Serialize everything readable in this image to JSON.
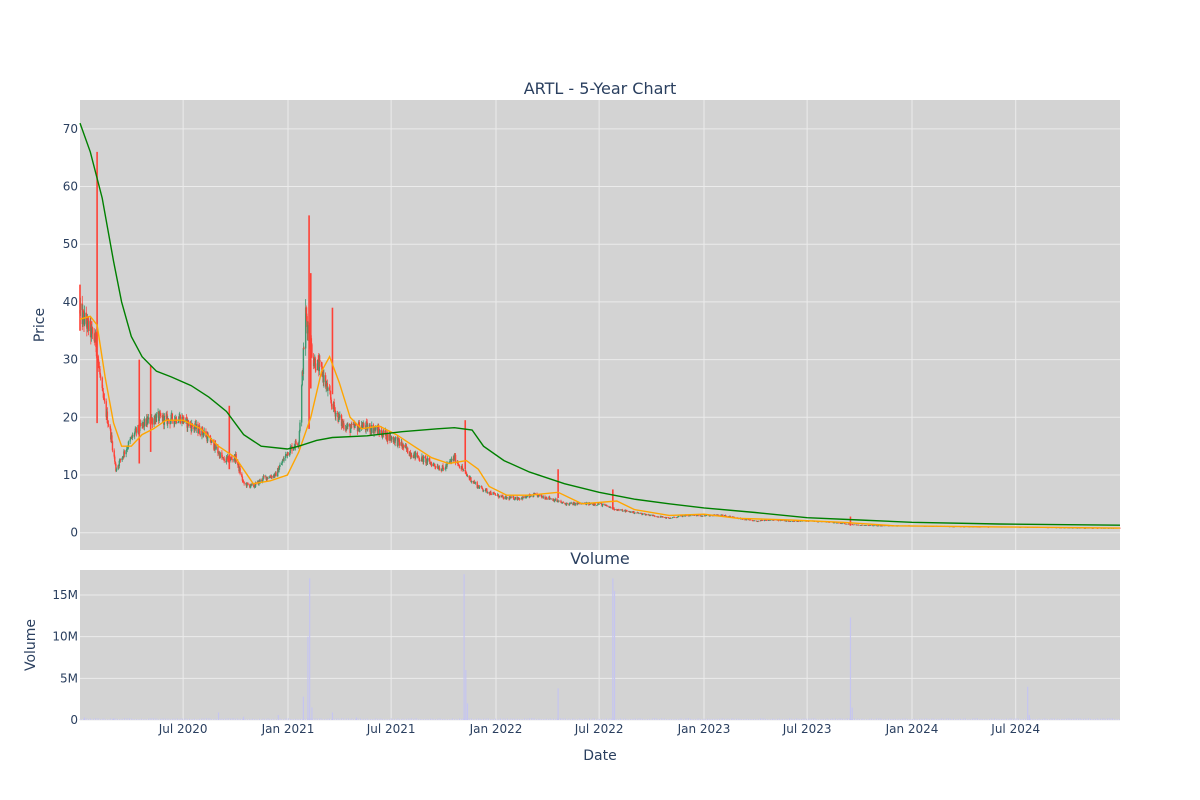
{
  "chart_data": {
    "type": "candlestick",
    "title": "ARTL - 5-Year Chart",
    "price_panel": {
      "ylabel": "Price",
      "ylim": [
        -3,
        75
      ],
      "yticks": [
        0,
        10,
        20,
        30,
        40,
        50,
        60,
        70
      ],
      "series": [
        {
          "kind": "candlestick",
          "up_color": "#3d9970",
          "down_color": "#ff4136",
          "approx_close": [
            [
              "2020-01-02",
              38
            ],
            [
              "2020-01-15",
              36
            ],
            [
              "2020-01-30",
              33
            ],
            [
              "2020-02-10",
              24
            ],
            [
              "2020-02-25",
              17
            ],
            [
              "2020-03-05",
              11
            ],
            [
              "2020-03-20",
              14
            ],
            [
              "2020-04-05",
              17
            ],
            [
              "2020-04-25",
              19
            ],
            [
              "2020-05-15",
              20
            ],
            [
              "2020-06-05",
              19.5
            ],
            [
              "2020-06-25",
              20
            ],
            [
              "2020-07-15",
              18.5
            ],
            [
              "2020-08-05",
              17.5
            ],
            [
              "2020-08-25",
              15
            ],
            [
              "2020-09-10",
              12.5
            ],
            [
              "2020-10-01",
              13
            ],
            [
              "2020-10-15",
              8.5
            ],
            [
              "2020-11-01",
              8
            ],
            [
              "2020-11-20",
              9.5
            ],
            [
              "2020-12-10",
              10
            ],
            [
              "2020-12-31",
              14
            ],
            [
              "2021-01-20",
              16
            ],
            [
              "2021-02-01",
              38
            ],
            [
              "2021-02-15",
              30
            ],
            [
              "2021-03-01",
              28
            ],
            [
              "2021-03-20",
              22
            ],
            [
              "2021-04-05",
              19
            ],
            [
              "2021-04-20",
              18
            ],
            [
              "2021-05-10",
              18.5
            ],
            [
              "2021-06-01",
              18
            ],
            [
              "2021-06-20",
              17
            ],
            [
              "2021-07-10",
              16
            ],
            [
              "2021-08-01",
              14
            ],
            [
              "2021-08-20",
              13
            ],
            [
              "2021-09-10",
              12
            ],
            [
              "2021-10-01",
              11
            ],
            [
              "2021-10-20",
              13
            ],
            [
              "2021-11-10",
              10
            ],
            [
              "2021-12-01",
              8
            ],
            [
              "2021-12-20",
              7
            ],
            [
              "2022-01-15",
              6
            ],
            [
              "2022-02-15",
              6
            ],
            [
              "2022-03-10",
              6.5
            ],
            [
              "2022-04-05",
              6
            ],
            [
              "2022-05-01",
              5
            ],
            [
              "2022-06-01",
              5
            ],
            [
              "2022-07-01",
              5
            ],
            [
              "2022-08-01",
              4
            ],
            [
              "2022-09-01",
              3.5
            ],
            [
              "2022-10-01",
              3
            ],
            [
              "2022-11-01",
              2.5
            ],
            [
              "2022-12-01",
              3
            ],
            [
              "2023-01-01",
              3
            ],
            [
              "2023-02-01",
              3
            ],
            [
              "2023-03-01",
              2.5
            ],
            [
              "2023-04-01",
              2
            ],
            [
              "2023-05-01",
              2.2
            ],
            [
              "2023-06-01",
              2
            ],
            [
              "2023-07-01",
              2
            ],
            [
              "2023-08-01",
              1.9
            ],
            [
              "2023-09-01",
              1.6
            ],
            [
              "2023-10-01",
              1.3
            ],
            [
              "2023-11-01",
              1.2
            ],
            [
              "2023-12-01",
              1.2
            ],
            [
              "2024-01-01",
              1.2
            ],
            [
              "2024-03-01",
              1.1
            ],
            [
              "2024-05-01",
              1.0
            ],
            [
              "2024-07-01",
              1.0
            ],
            [
              "2024-09-01",
              0.9
            ],
            [
              "2024-11-01",
              0.8
            ],
            [
              "2024-12-31",
              0.8
            ]
          ],
          "spikes": [
            {
              "date": "2020-01-02",
              "high": 43,
              "low": 35
            },
            {
              "date": "2020-02-01",
              "high": 66,
              "low": 19
            },
            {
              "date": "2020-04-15",
              "high": 30,
              "low": 12
            },
            {
              "date": "2020-05-05",
              "high": 29,
              "low": 14
            },
            {
              "date": "2020-09-20",
              "high": 22,
              "low": 11
            },
            {
              "date": "2021-02-07",
              "high": 55,
              "low": 18
            },
            {
              "date": "2021-02-10",
              "high": 45,
              "low": 25
            },
            {
              "date": "2021-03-20",
              "high": 39,
              "low": 24
            },
            {
              "date": "2021-11-08",
              "high": 19.5,
              "low": 11
            },
            {
              "date": "2022-04-20",
              "high": 11,
              "low": 6
            },
            {
              "date": "2022-07-25",
              "high": 7.5,
              "low": 4
            },
            {
              "date": "2023-09-15",
              "high": 2.8,
              "low": 1.2
            }
          ]
        },
        {
          "kind": "line",
          "color": "#ffa500",
          "points": [
            [
              "2020-01-02",
              37
            ],
            [
              "2020-01-20",
              37.5
            ],
            [
              "2020-02-01",
              36
            ],
            [
              "2020-02-15",
              27
            ],
            [
              "2020-03-01",
              19
            ],
            [
              "2020-03-15",
              15
            ],
            [
              "2020-04-01",
              15
            ],
            [
              "2020-04-20",
              17
            ],
            [
              "2020-05-10",
              18
            ],
            [
              "2020-06-01",
              19.5
            ],
            [
              "2020-07-01",
              19.5
            ],
            [
              "2020-08-01",
              18
            ],
            [
              "2020-09-01",
              15
            ],
            [
              "2020-10-01",
              13
            ],
            [
              "2020-11-01",
              8.5
            ],
            [
              "2020-12-01",
              9
            ],
            [
              "2020-12-31",
              10
            ],
            [
              "2021-01-20",
              14
            ],
            [
              "2021-02-10",
              20
            ],
            [
              "2021-03-01",
              28
            ],
            [
              "2021-03-15",
              30.5
            ],
            [
              "2021-04-01",
              26
            ],
            [
              "2021-04-20",
              20
            ],
            [
              "2021-05-10",
              18
            ],
            [
              "2021-06-10",
              18.5
            ],
            [
              "2021-07-10",
              17
            ],
            [
              "2021-08-10",
              15
            ],
            [
              "2021-09-10",
              13
            ],
            [
              "2021-10-10",
              12
            ],
            [
              "2021-11-10",
              12.5
            ],
            [
              "2021-12-01",
              11
            ],
            [
              "2021-12-20",
              8
            ],
            [
              "2022-01-20",
              6.5
            ],
            [
              "2022-03-01",
              6.5
            ],
            [
              "2022-04-20",
              7
            ],
            [
              "2022-06-01",
              5
            ],
            [
              "2022-08-01",
              5.5
            ],
            [
              "2022-09-01",
              4
            ],
            [
              "2022-11-01",
              3
            ],
            [
              "2023-01-01",
              3.2
            ],
            [
              "2023-03-01",
              2.5
            ],
            [
              "2023-06-01",
              2.2
            ],
            [
              "2023-09-01",
              1.8
            ],
            [
              "2023-12-01",
              1.2
            ],
            [
              "2024-06-01",
              1.0
            ],
            [
              "2024-12-31",
              0.8
            ]
          ]
        },
        {
          "kind": "line",
          "color": "#008000",
          "points": [
            [
              "2020-01-02",
              71
            ],
            [
              "2020-01-20",
              66
            ],
            [
              "2020-02-10",
              58
            ],
            [
              "2020-03-01",
              47
            ],
            [
              "2020-03-15",
              40
            ],
            [
              "2020-04-01",
              34
            ],
            [
              "2020-04-20",
              30.5
            ],
            [
              "2020-05-15",
              28
            ],
            [
              "2020-06-10",
              27
            ],
            [
              "2020-07-15",
              25.5
            ],
            [
              "2020-08-15",
              23.5
            ],
            [
              "2020-09-15",
              21
            ],
            [
              "2020-10-15",
              17
            ],
            [
              "2020-11-15",
              15
            ],
            [
              "2020-12-31",
              14.5
            ],
            [
              "2021-01-20",
              15
            ],
            [
              "2021-02-20",
              16
            ],
            [
              "2021-03-20",
              16.5
            ],
            [
              "2021-05-20",
              16.8
            ],
            [
              "2021-07-20",
              17.5
            ],
            [
              "2021-09-20",
              18
            ],
            [
              "2021-10-20",
              18.2
            ],
            [
              "2021-11-20",
              17.8
            ],
            [
              "2021-12-10",
              15
            ],
            [
              "2022-01-15",
              12.5
            ],
            [
              "2022-03-01",
              10.5
            ],
            [
              "2022-05-01",
              8.5
            ],
            [
              "2022-07-01",
              7
            ],
            [
              "2022-09-01",
              5.8
            ],
            [
              "2022-11-01",
              5
            ],
            [
              "2023-01-01",
              4.3
            ],
            [
              "2023-04-01",
              3.5
            ],
            [
              "2023-07-01",
              2.6
            ],
            [
              "2023-10-01",
              2.2
            ],
            [
              "2024-01-01",
              1.8
            ],
            [
              "2024-06-01",
              1.5
            ],
            [
              "2024-12-31",
              1.3
            ]
          ]
        }
      ]
    },
    "volume_panel": {
      "title": "Volume",
      "ylabel": "Volume",
      "ylim": [
        0,
        18000000
      ],
      "yticks": [
        0,
        5000000,
        10000000,
        15000000
      ],
      "ytick_labels": [
        "0",
        "5M",
        "10M",
        "15M"
      ],
      "bar_color": "#c5c5f0",
      "bars": [
        [
          "2020-01-10",
          300000
        ],
        [
          "2020-03-01",
          200000
        ],
        [
          "2020-09-01",
          900000
        ],
        [
          "2020-10-15",
          400000
        ],
        [
          "2020-12-15",
          600000
        ],
        [
          "2021-01-28",
          2800000
        ],
        [
          "2021-02-05",
          10000000
        ],
        [
          "2021-02-08",
          17000000
        ],
        [
          "2021-02-12",
          1500000
        ],
        [
          "2021-03-20",
          900000
        ],
        [
          "2021-05-01",
          300000
        ],
        [
          "2021-11-06",
          17500000
        ],
        [
          "2021-11-09",
          6000000
        ],
        [
          "2021-11-12",
          2000000
        ],
        [
          "2022-04-20",
          3800000
        ],
        [
          "2022-07-25",
          17000000
        ],
        [
          "2022-07-28",
          15500000
        ],
        [
          "2023-09-15",
          12300000
        ],
        [
          "2023-09-18",
          1500000
        ],
        [
          "2024-07-22",
          4000000
        ],
        [
          "2024-07-25",
          600000
        ]
      ]
    },
    "x_axis": {
      "xlabel": "Date",
      "range": [
        "2020-01-02",
        "2024-12-31"
      ],
      "ticks": [
        "2020-07-01",
        "2021-01-01",
        "2021-07-01",
        "2022-01-01",
        "2022-07-01",
        "2023-01-01",
        "2023-07-01",
        "2024-01-01",
        "2024-07-01"
      ],
      "tick_labels": [
        "Jul 2020",
        "Jan 2021",
        "Jul 2021",
        "Jan 2022",
        "Jul 2022",
        "Jan 2023",
        "Jul 2023",
        "Jan 2024",
        "Jul 2024"
      ]
    },
    "colors": {
      "plot_bg": "#d3d3d3",
      "grid": "#ebebeb",
      "text": "#2a3f5f"
    }
  }
}
